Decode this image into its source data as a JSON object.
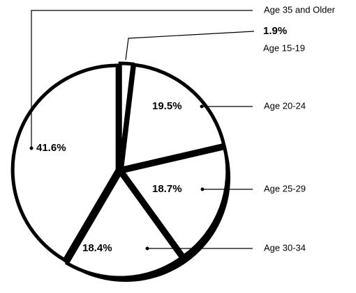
{
  "chart_data": {
    "type": "pie",
    "categories": [
      "Age 15-19",
      "Age 20-24",
      "Age 25-29",
      "Age 30-34",
      "Age 35 and Older"
    ],
    "values": [
      1.9,
      19.5,
      18.7,
      18.4,
      41.6
    ],
    "value_labels": [
      "1.9%",
      "19.5%",
      "18.7%",
      "18.4%",
      "41.6%"
    ]
  }
}
